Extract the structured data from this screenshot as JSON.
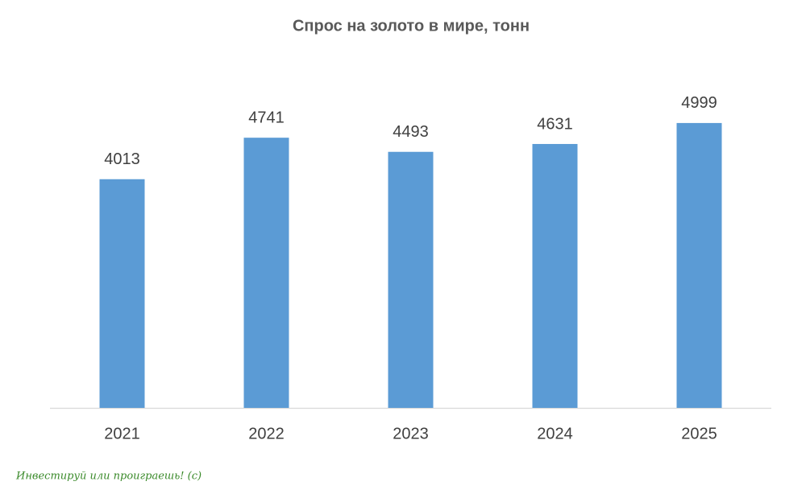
{
  "chart_data": {
    "type": "bar",
    "title": "Спрос на золото в мире, тонн",
    "categories": [
      "2021",
      "2022",
      "2023",
      "2024",
      "2025"
    ],
    "values": [
      4013,
      4741,
      4493,
      4631,
      4999
    ],
    "color": "#5b9bd5",
    "ylim": [
      0,
      6000
    ],
    "watermark": "Инвестируй или проиграешь! (c)"
  }
}
